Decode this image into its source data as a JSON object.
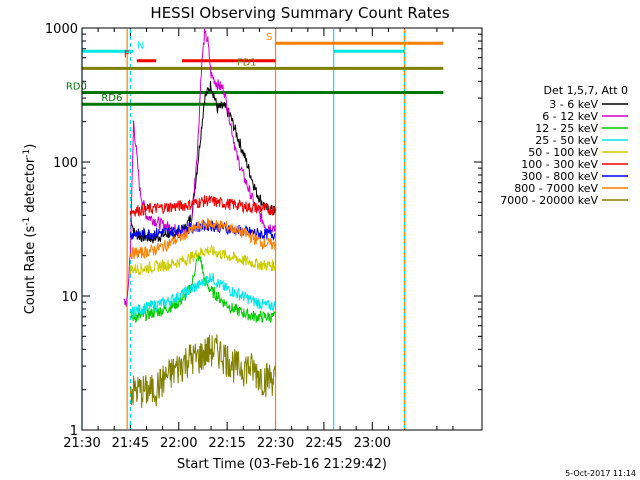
{
  "chart_data": {
    "type": "line",
    "title": "HESSI Observing Summary Count Rates",
    "xlabel": "Start Time (03-Feb-16 21:29:42)",
    "ylabel_main": "Count Rate (s",
    "ylabel_sup1": "-1",
    "ylabel_mid": " detector",
    "ylabel_sup2": "-1",
    "ylabel_end": ")",
    "yscale": "log",
    "ylim": [
      1,
      1000
    ],
    "xlim_min": [
      1290,
      1414
    ],
    "x_ticks": [
      {
        "v": 1290,
        "label": "21:30"
      },
      {
        "v": 1305,
        "label": "21:45"
      },
      {
        "v": 1320,
        "label": "22:00"
      },
      {
        "v": 1335,
        "label": "22:15"
      },
      {
        "v": 1350,
        "label": "22:30"
      },
      {
        "v": 1365,
        "label": "22:45"
      },
      {
        "v": 1380,
        "label": "23:00"
      }
    ],
    "y_ticks": [
      {
        "v": 1,
        "label": "1"
      },
      {
        "v": 10,
        "label": "10"
      },
      {
        "v": 100,
        "label": "100"
      },
      {
        "v": 1000,
        "label": "1000"
      }
    ],
    "legend": {
      "header": "Det 1,5,7, Att 0",
      "entries": [
        {
          "name": "3 - 6 keV",
          "color": "#000000"
        },
        {
          "name": "6 - 12 keV",
          "color": "#cc00cc"
        },
        {
          "name": "12 - 25 keV",
          "color": "#00cc00"
        },
        {
          "name": "25 - 50 keV",
          "color": "#00e6e6"
        },
        {
          "name": "50 - 100 keV",
          "color": "#cccc00"
        },
        {
          "name": "100 - 300 keV",
          "color": "#ee0000"
        },
        {
          "name": "300 - 800 keV",
          "color": "#0000ee"
        },
        {
          "name": "800 - 7000 keV",
          "color": "#ff7f00"
        },
        {
          "name": "7000 - 20000 keV",
          "color": "#808000"
        }
      ]
    },
    "series": [
      {
        "name": "3 - 6 keV",
        "color": "#000000",
        "points": [
          [
            1305,
            42
          ],
          [
            1306,
            30
          ],
          [
            1308,
            28
          ],
          [
            1312,
            27
          ],
          [
            1316,
            29
          ],
          [
            1320,
            30
          ],
          [
            1322,
            32
          ],
          [
            1324,
            40
          ],
          [
            1326,
            105
          ],
          [
            1328,
            300
          ],
          [
            1330,
            380
          ],
          [
            1332,
            250
          ],
          [
            1334,
            260
          ],
          [
            1336,
            220
          ],
          [
            1338,
            160
          ],
          [
            1341,
            100
          ],
          [
            1344,
            60
          ],
          [
            1347,
            45
          ],
          [
            1350,
            43
          ]
        ]
      },
      {
        "name": "6 - 12 keV",
        "color": "#cc00cc",
        "points": [
          [
            1303,
            9
          ],
          [
            1304,
            9
          ],
          [
            1305,
            22
          ],
          [
            1306,
            200
          ],
          [
            1307,
            110
          ],
          [
            1308,
            60
          ],
          [
            1310,
            40
          ],
          [
            1314,
            35
          ],
          [
            1318,
            32
          ],
          [
            1322,
            30
          ],
          [
            1324,
            35
          ],
          [
            1326,
            150
          ],
          [
            1327,
            500
          ],
          [
            1328,
            900
          ],
          [
            1329,
            800
          ],
          [
            1330,
            450
          ],
          [
            1332,
            380
          ],
          [
            1334,
            350
          ],
          [
            1336,
            200
          ],
          [
            1338,
            110
          ],
          [
            1340,
            80
          ],
          [
            1344,
            45
          ],
          [
            1347,
            33
          ],
          [
            1350,
            33
          ]
        ]
      },
      {
        "name": "12 - 25 keV",
        "color": "#00cc00",
        "points": [
          [
            1305,
            7
          ],
          [
            1308,
            7
          ],
          [
            1312,
            7.5
          ],
          [
            1316,
            8
          ],
          [
            1320,
            9
          ],
          [
            1322,
            10
          ],
          [
            1324,
            12
          ],
          [
            1325,
            16
          ],
          [
            1326,
            20
          ],
          [
            1327,
            18
          ],
          [
            1328,
            13
          ],
          [
            1330,
            11
          ],
          [
            1332,
            10
          ],
          [
            1334,
            9
          ],
          [
            1337,
            8
          ],
          [
            1340,
            7.5
          ],
          [
            1344,
            7
          ],
          [
            1350,
            7
          ]
        ]
      },
      {
        "name": "25 - 50 keV",
        "color": "#00e6e6",
        "points": [
          [
            1305,
            7.5
          ],
          [
            1308,
            8
          ],
          [
            1312,
            8.5
          ],
          [
            1316,
            9
          ],
          [
            1320,
            10
          ],
          [
            1323,
            11
          ],
          [
            1326,
            12
          ],
          [
            1328,
            13
          ],
          [
            1330,
            14
          ],
          [
            1333,
            12
          ],
          [
            1336,
            11
          ],
          [
            1340,
            10
          ],
          [
            1344,
            9
          ],
          [
            1347,
            8.5
          ],
          [
            1350,
            8.5
          ]
        ]
      },
      {
        "name": "50 - 100 keV",
        "color": "#cccc00",
        "points": [
          [
            1305,
            16
          ],
          [
            1308,
            16
          ],
          [
            1312,
            16.5
          ],
          [
            1316,
            17
          ],
          [
            1320,
            18
          ],
          [
            1323,
            19
          ],
          [
            1326,
            21
          ],
          [
            1329,
            22
          ],
          [
            1332,
            21
          ],
          [
            1335,
            20
          ],
          [
            1338,
            19
          ],
          [
            1342,
            18
          ],
          [
            1346,
            17
          ],
          [
            1350,
            17
          ]
        ]
      },
      {
        "name": "100 - 300 keV",
        "color": "#ee0000",
        "points": [
          [
            1305,
            43
          ],
          [
            1308,
            44
          ],
          [
            1312,
            45
          ],
          [
            1316,
            46
          ],
          [
            1320,
            47
          ],
          [
            1323,
            48
          ],
          [
            1326,
            50
          ],
          [
            1329,
            52
          ],
          [
            1332,
            50
          ],
          [
            1335,
            49
          ],
          [
            1338,
            48
          ],
          [
            1342,
            46
          ],
          [
            1346,
            45
          ],
          [
            1350,
            44
          ]
        ]
      },
      {
        "name": "300 - 800 keV",
        "color": "#0000ee",
        "points": [
          [
            1305,
            29
          ],
          [
            1308,
            29
          ],
          [
            1312,
            29.5
          ],
          [
            1316,
            30
          ],
          [
            1320,
            31
          ],
          [
            1323,
            32
          ],
          [
            1326,
            33
          ],
          [
            1329,
            34
          ],
          [
            1332,
            33
          ],
          [
            1335,
            32
          ],
          [
            1338,
            31
          ],
          [
            1342,
            30
          ],
          [
            1346,
            29
          ],
          [
            1350,
            29
          ]
        ]
      },
      {
        "name": "800 - 7000 keV",
        "color": "#ff7f00",
        "points": [
          [
            1305,
            21
          ],
          [
            1308,
            21
          ],
          [
            1312,
            22
          ],
          [
            1316,
            24
          ],
          [
            1320,
            27
          ],
          [
            1323,
            30
          ],
          [
            1326,
            33
          ],
          [
            1329,
            35
          ],
          [
            1332,
            34
          ],
          [
            1335,
            33
          ],
          [
            1338,
            31
          ],
          [
            1342,
            28
          ],
          [
            1346,
            25
          ],
          [
            1350,
            24
          ]
        ]
      },
      {
        "name": "7000 - 20000 keV",
        "color": "#808000",
        "points": [
          [
            1305,
            2
          ],
          [
            1308,
            2
          ],
          [
            1312,
            2
          ],
          [
            1316,
            2.5
          ],
          [
            1320,
            3
          ],
          [
            1323,
            3.5
          ],
          [
            1326,
            3.5
          ],
          [
            1329,
            4
          ],
          [
            1332,
            4
          ],
          [
            1335,
            3.5
          ],
          [
            1338,
            3
          ],
          [
            1342,
            3
          ],
          [
            1346,
            2.5
          ],
          [
            1350,
            2.5
          ]
        ]
      }
    ],
    "flags": [
      {
        "label": "N",
        "color": "#00e6e6",
        "y": 670,
        "x0": 1290,
        "x1": 1306,
        "label_x": 1307
      },
      {
        "label": "F",
        "color": "#ee0000",
        "y": 570,
        "x0": 1307,
        "x1": 1313,
        "label_x": 1303
      },
      {
        "label": "",
        "color": "#ee0000",
        "y": 570,
        "x0": 1321,
        "x1": 1350,
        "label_x": null
      },
      {
        "label": "S",
        "color": "#ff7f00",
        "y": 770,
        "x0": 1350,
        "x1": 1402,
        "label_x": 1347
      },
      {
        "label": "",
        "color": "#00e6e6",
        "y": 670,
        "x0": 1368,
        "x1": 1390,
        "label_x": null
      },
      {
        "label": "FD1",
        "color": "#808000",
        "y": 500,
        "x0": 1290,
        "x1": 1402,
        "label_x": 1338
      },
      {
        "label": "RD0",
        "color": "#007700",
        "y": 330,
        "x0": 1290,
        "x1": 1402,
        "label_x": 1285
      },
      {
        "label": "RD6",
        "color": "#007700",
        "y": 270,
        "x0": 1290,
        "x1": 1335,
        "label_x": 1296
      }
    ],
    "vlines": [
      {
        "x": 1290,
        "color": "#00e6e6",
        "dashed": false
      },
      {
        "x": 1305,
        "color": "#00e6e6",
        "dashed": true
      },
      {
        "x": 1304,
        "color": "#ff7f00",
        "dashed": false
      },
      {
        "x": 1350,
        "color": "#ff7f00",
        "dashed": false
      },
      {
        "x": 1368,
        "color": "#00e6e6",
        "dashed": false
      },
      {
        "x": 1390,
        "color": "#00e6e6",
        "dashed": false
      },
      {
        "x": 1390,
        "color": "#ff7f00",
        "dashed": true
      }
    ]
  },
  "footer": {
    "timestamp": "5-Oct-2017 11:14"
  }
}
